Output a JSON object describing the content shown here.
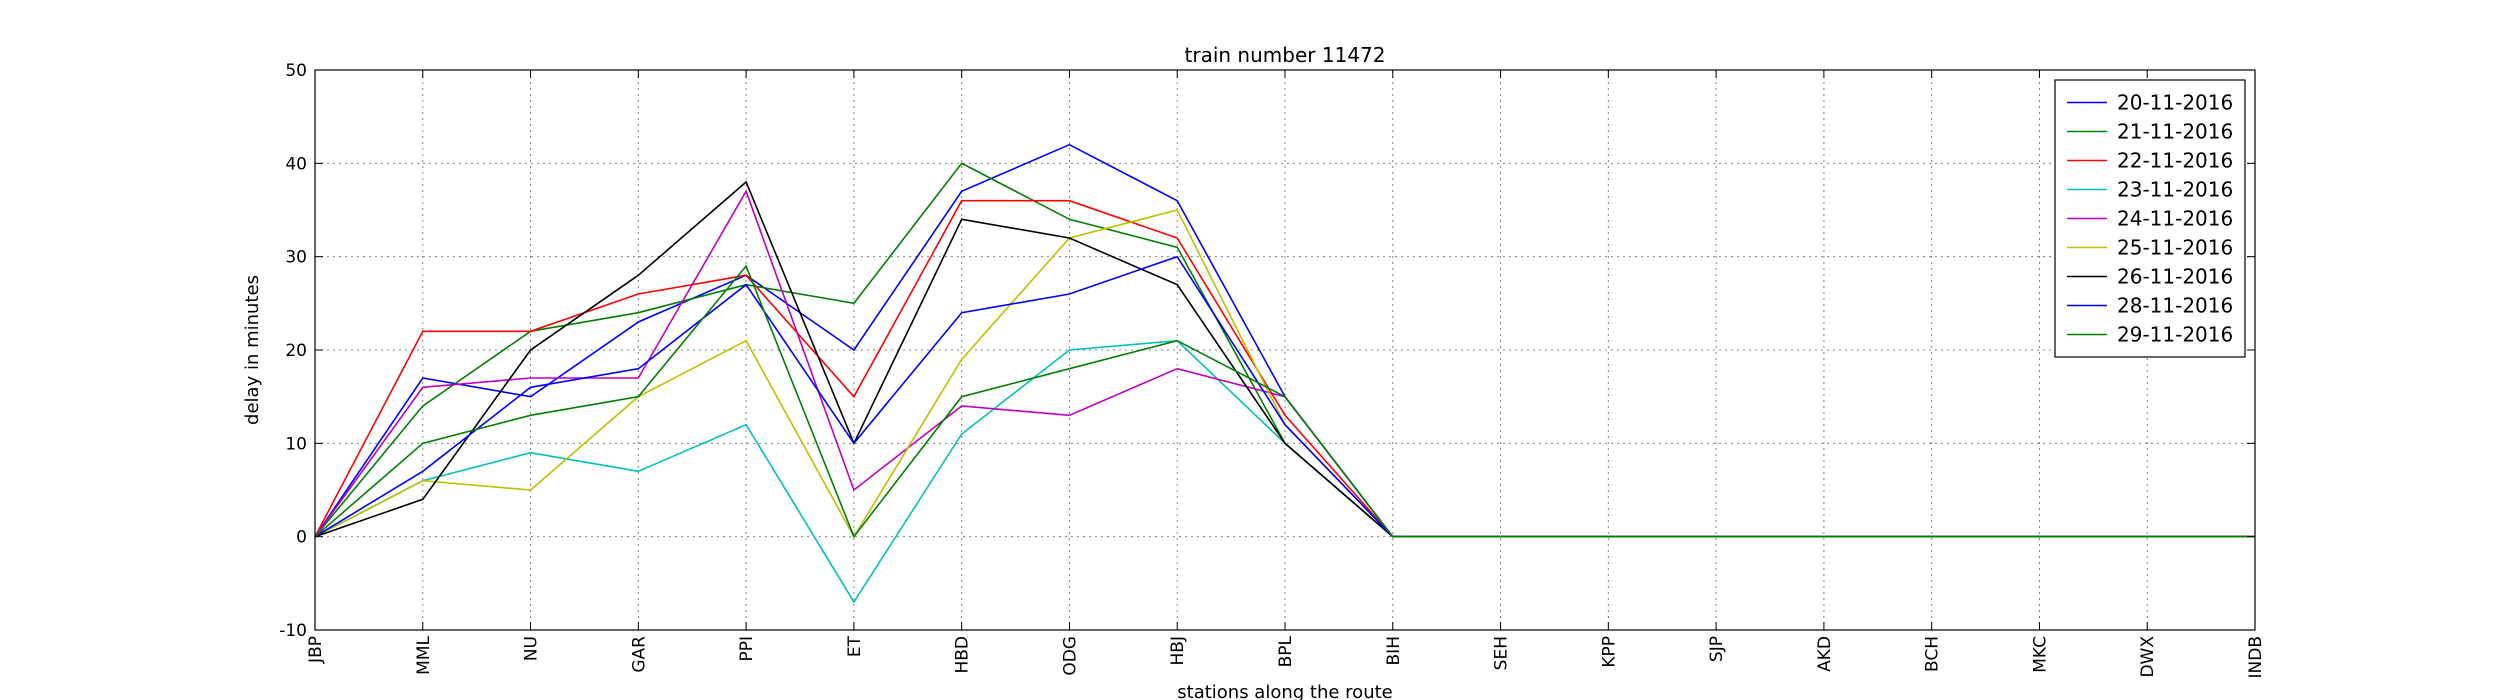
{
  "chart_data": {
    "type": "line",
    "title": "train number 11472",
    "xlabel": "stations along the route",
    "ylabel": "delay in minutes",
    "ylim": [
      -10,
      50
    ],
    "yticks": [
      -10,
      0,
      10,
      20,
      30,
      40,
      50
    ],
    "grid": true,
    "legend_position": "top-right",
    "categories": [
      "JBP",
      "MML",
      "NU",
      "GAR",
      "PPI",
      "ET",
      "HBD",
      "ODG",
      "HBJ",
      "BPL",
      "BIH",
      "SEH",
      "KPP",
      "SJP",
      "AKD",
      "BCH",
      "MKC",
      "DWX",
      "INDB"
    ],
    "series": [
      {
        "name": "20-11-2016",
        "color": "#0000ff",
        "values": [
          0,
          17,
          15,
          23,
          28,
          20,
          37,
          42,
          36,
          15,
          0,
          0,
          0,
          0,
          0,
          0,
          0,
          0,
          0
        ]
      },
      {
        "name": "21-11-2016",
        "color": "#008000",
        "values": [
          0,
          14,
          22,
          24,
          27,
          25,
          40,
          34,
          31,
          10,
          0,
          0,
          0,
          0,
          0,
          0,
          0,
          0,
          0
        ]
      },
      {
        "name": "22-11-2016",
        "color": "#ff0000",
        "values": [
          0,
          22,
          22,
          26,
          28,
          15,
          36,
          36,
          32,
          13,
          0,
          0,
          0,
          0,
          0,
          0,
          0,
          0,
          0
        ]
      },
      {
        "name": "23-11-2016",
        "color": "#00bfbf",
        "values": [
          0,
          6,
          9,
          7,
          12,
          -7,
          11,
          20,
          21,
          10,
          0,
          0,
          0,
          0,
          0,
          0,
          0,
          0,
          0
        ]
      },
      {
        "name": "24-11-2016",
        "color": "#bf00bf",
        "values": [
          0,
          16,
          17,
          17,
          37,
          5,
          14,
          13,
          18,
          15,
          0,
          0,
          0,
          0,
          0,
          0,
          0,
          0,
          0
        ]
      },
      {
        "name": "25-11-2016",
        "color": "#bfbf00",
        "values": [
          0,
          6,
          5,
          15,
          21,
          0,
          19,
          32,
          35,
          12,
          0,
          0,
          0,
          0,
          0,
          0,
          0,
          0,
          0
        ]
      },
      {
        "name": "26-11-2016",
        "color": "#000000",
        "values": [
          0,
          4,
          20,
          28,
          38,
          10,
          34,
          32,
          27,
          10,
          0,
          0,
          0,
          0,
          0,
          0,
          0,
          0,
          0
        ]
      },
      {
        "name": "28-11-2016",
        "color": "#0000ff",
        "values": [
          0,
          7,
          16,
          18,
          27,
          10,
          24,
          26,
          30,
          12,
          0,
          0,
          0,
          0,
          0,
          0,
          0,
          0,
          0
        ]
      },
      {
        "name": "29-11-2016",
        "color": "#008000",
        "values": [
          0,
          10,
          13,
          15,
          29,
          0,
          15,
          18,
          21,
          15,
          0,
          0,
          0,
          0,
          0,
          0,
          0,
          0,
          0
        ]
      }
    ]
  }
}
